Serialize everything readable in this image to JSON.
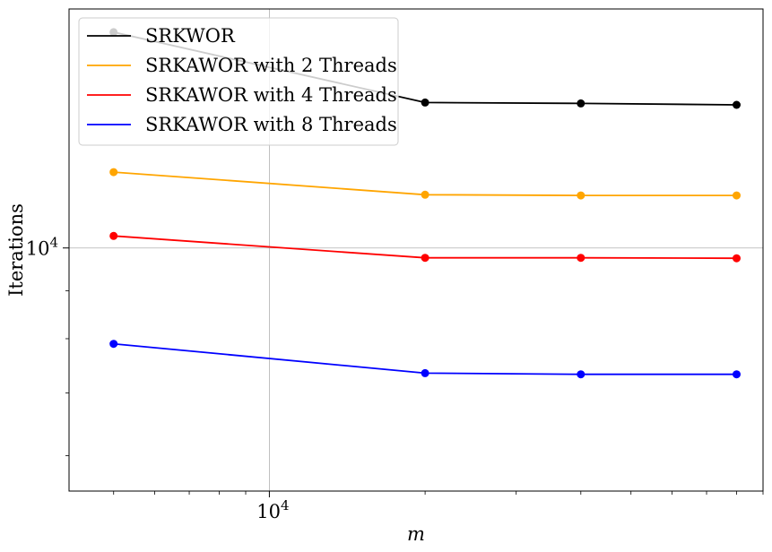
{
  "chart_data": {
    "type": "line",
    "x_scale": "log",
    "y_scale": "log",
    "xlabel": "m",
    "ylabel": "Iterations",
    "xlim": [
      4100,
      90000
    ],
    "ylim": [
      5500,
      18000
    ],
    "x_ticks": [
      {
        "value": 10000,
        "label": "10^4"
      }
    ],
    "y_ticks": [
      {
        "value": 10000,
        "label": "10^4"
      }
    ],
    "grid": true,
    "legend_position": "upper left",
    "series": [
      {
        "name": "SRKWOR",
        "color": "#000000",
        "x": [
          5000,
          20000,
          40000,
          80000
        ],
        "y": [
          17000,
          14300,
          14270,
          14220
        ]
      },
      {
        "name": "SRKAWOR with 2 Threads",
        "color": "#FFA500",
        "x": [
          5000,
          20000,
          40000,
          80000
        ],
        "y": [
          12050,
          11400,
          11380,
          11380
        ]
      },
      {
        "name": "SRKAWOR with 4 Threads",
        "color": "#FF0000",
        "x": [
          5000,
          20000,
          40000,
          80000
        ],
        "y": [
          10300,
          9760,
          9760,
          9750
        ]
      },
      {
        "name": "SRKAWOR with 8 Threads",
        "color": "#0000FF",
        "x": [
          5000,
          20000,
          40000,
          80000
        ],
        "y": [
          7900,
          7350,
          7330,
          7330
        ]
      }
    ]
  }
}
